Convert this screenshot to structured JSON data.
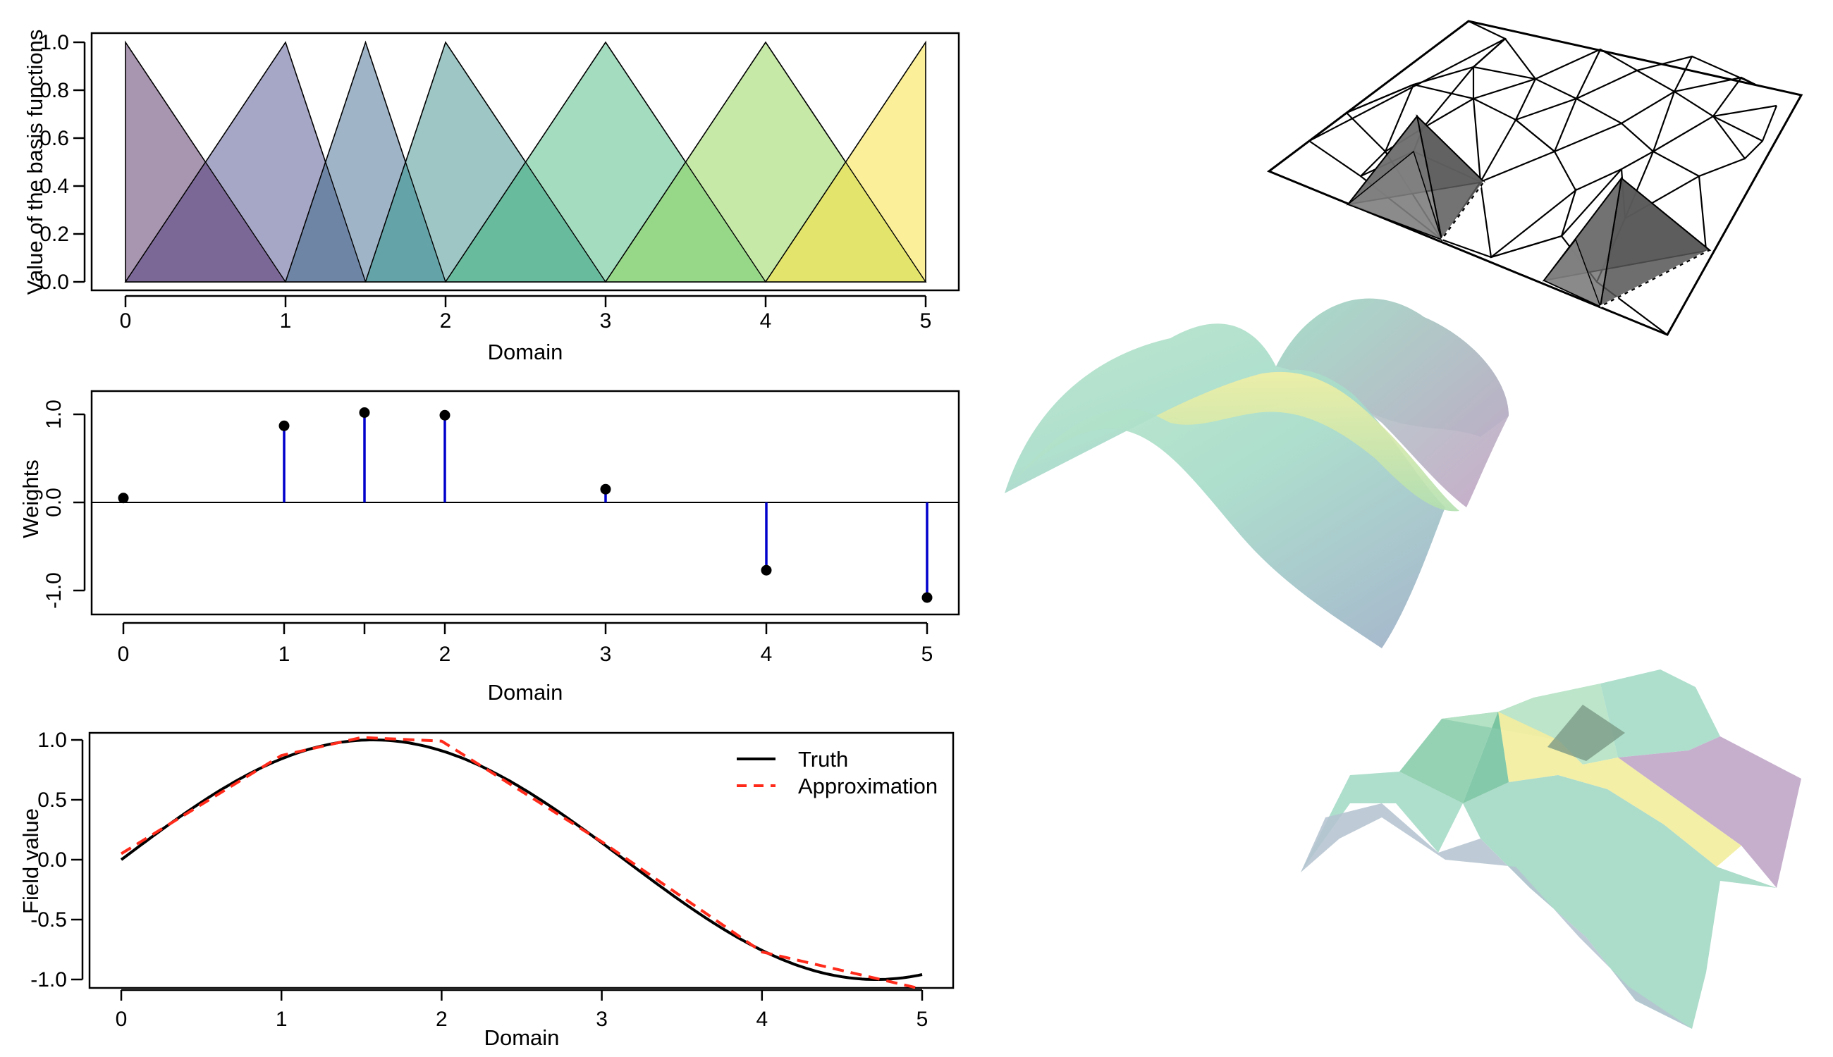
{
  "chart_data": [
    {
      "id": "basis",
      "type": "area",
      "xlabel": "Domain",
      "ylabel": "Value of the basis functions",
      "xlim": [
        0,
        5
      ],
      "ylim": [
        0,
        1
      ],
      "x_ticks": [
        "0",
        "1",
        "2",
        "3",
        "4",
        "5"
      ],
      "y_ticks": [
        "0.0",
        "0.2",
        "0.4",
        "0.6",
        "0.8",
        "1.0"
      ],
      "grid": false,
      "nodes": [
        0,
        1,
        1.5,
        2,
        3,
        4,
        5
      ],
      "series": [
        {
          "x": [
            0,
            0,
            1
          ],
          "y": [
            0,
            1,
            0
          ],
          "color": "#a895b0"
        },
        {
          "x": [
            0,
            1,
            1.5
          ],
          "y": [
            0,
            1,
            0
          ],
          "color": "#a6a6c6"
        },
        {
          "x": [
            1,
            1.5,
            2
          ],
          "y": [
            0,
            1,
            0
          ],
          "color": "#a0b4c8"
        },
        {
          "x": [
            1.5,
            2,
            3
          ],
          "y": [
            0,
            1,
            0
          ],
          "color": "#9dc6c5"
        },
        {
          "x": [
            2,
            3,
            4
          ],
          "y": [
            0,
            1,
            0
          ],
          "color": "#a4dcc0"
        },
        {
          "x": [
            3,
            4,
            5
          ],
          "y": [
            0,
            1,
            0
          ],
          "color": "#c6e9a8"
        },
        {
          "x": [
            4,
            5,
            5
          ],
          "y": [
            0,
            1,
            0
          ],
          "color": "#fbef99"
        }
      ],
      "overlap_colors": [
        "#7b6897",
        "#6e85a6",
        "#64a4a8",
        "#68bb9d",
        "#97d788",
        "#e3e46c"
      ]
    },
    {
      "id": "weights",
      "type": "scatter",
      "xlabel": "Domain",
      "ylabel": "Weights",
      "xlim": [
        0,
        5
      ],
      "ylim": [
        -1.2,
        1.15
      ],
      "x_ticks": [
        "0",
        "1",
        "1.5",
        "2",
        "3",
        "4",
        "5"
      ],
      "x_tick_values": [
        0,
        1,
        1.5,
        2,
        3,
        4,
        5
      ],
      "y_ticks": [
        "-1.0",
        "0.0",
        "1.0"
      ],
      "grid": false,
      "x": [
        0,
        1,
        1.5,
        2,
        3,
        4,
        5
      ],
      "values": [
        0.05,
        0.87,
        1.02,
        0.99,
        0.15,
        -0.77,
        -1.08
      ],
      "stem_color": "#0000cc"
    },
    {
      "id": "field",
      "type": "line",
      "xlabel": "Domain",
      "ylabel": "Field value",
      "xlim": [
        0,
        5
      ],
      "ylim": [
        -1,
        1
      ],
      "x_ticks": [
        "0",
        "1",
        "2",
        "3",
        "4",
        "5"
      ],
      "y_ticks": [
        "-1.0",
        "-0.5",
        "0.0",
        "0.5",
        "1.0"
      ],
      "grid": false,
      "legend": "top-right",
      "series": [
        {
          "name": "Truth",
          "function": "sin(x)",
          "color": "#000000",
          "dash": "solid"
        },
        {
          "name": "Approximation",
          "x": [
            0,
            1,
            1.5,
            2,
            3,
            4,
            5
          ],
          "y": [
            0.05,
            0.87,
            1.02,
            0.99,
            0.15,
            -0.77,
            -1.08
          ],
          "color": "#ff2a1a",
          "dash": "dashed"
        }
      ]
    }
  ]
}
